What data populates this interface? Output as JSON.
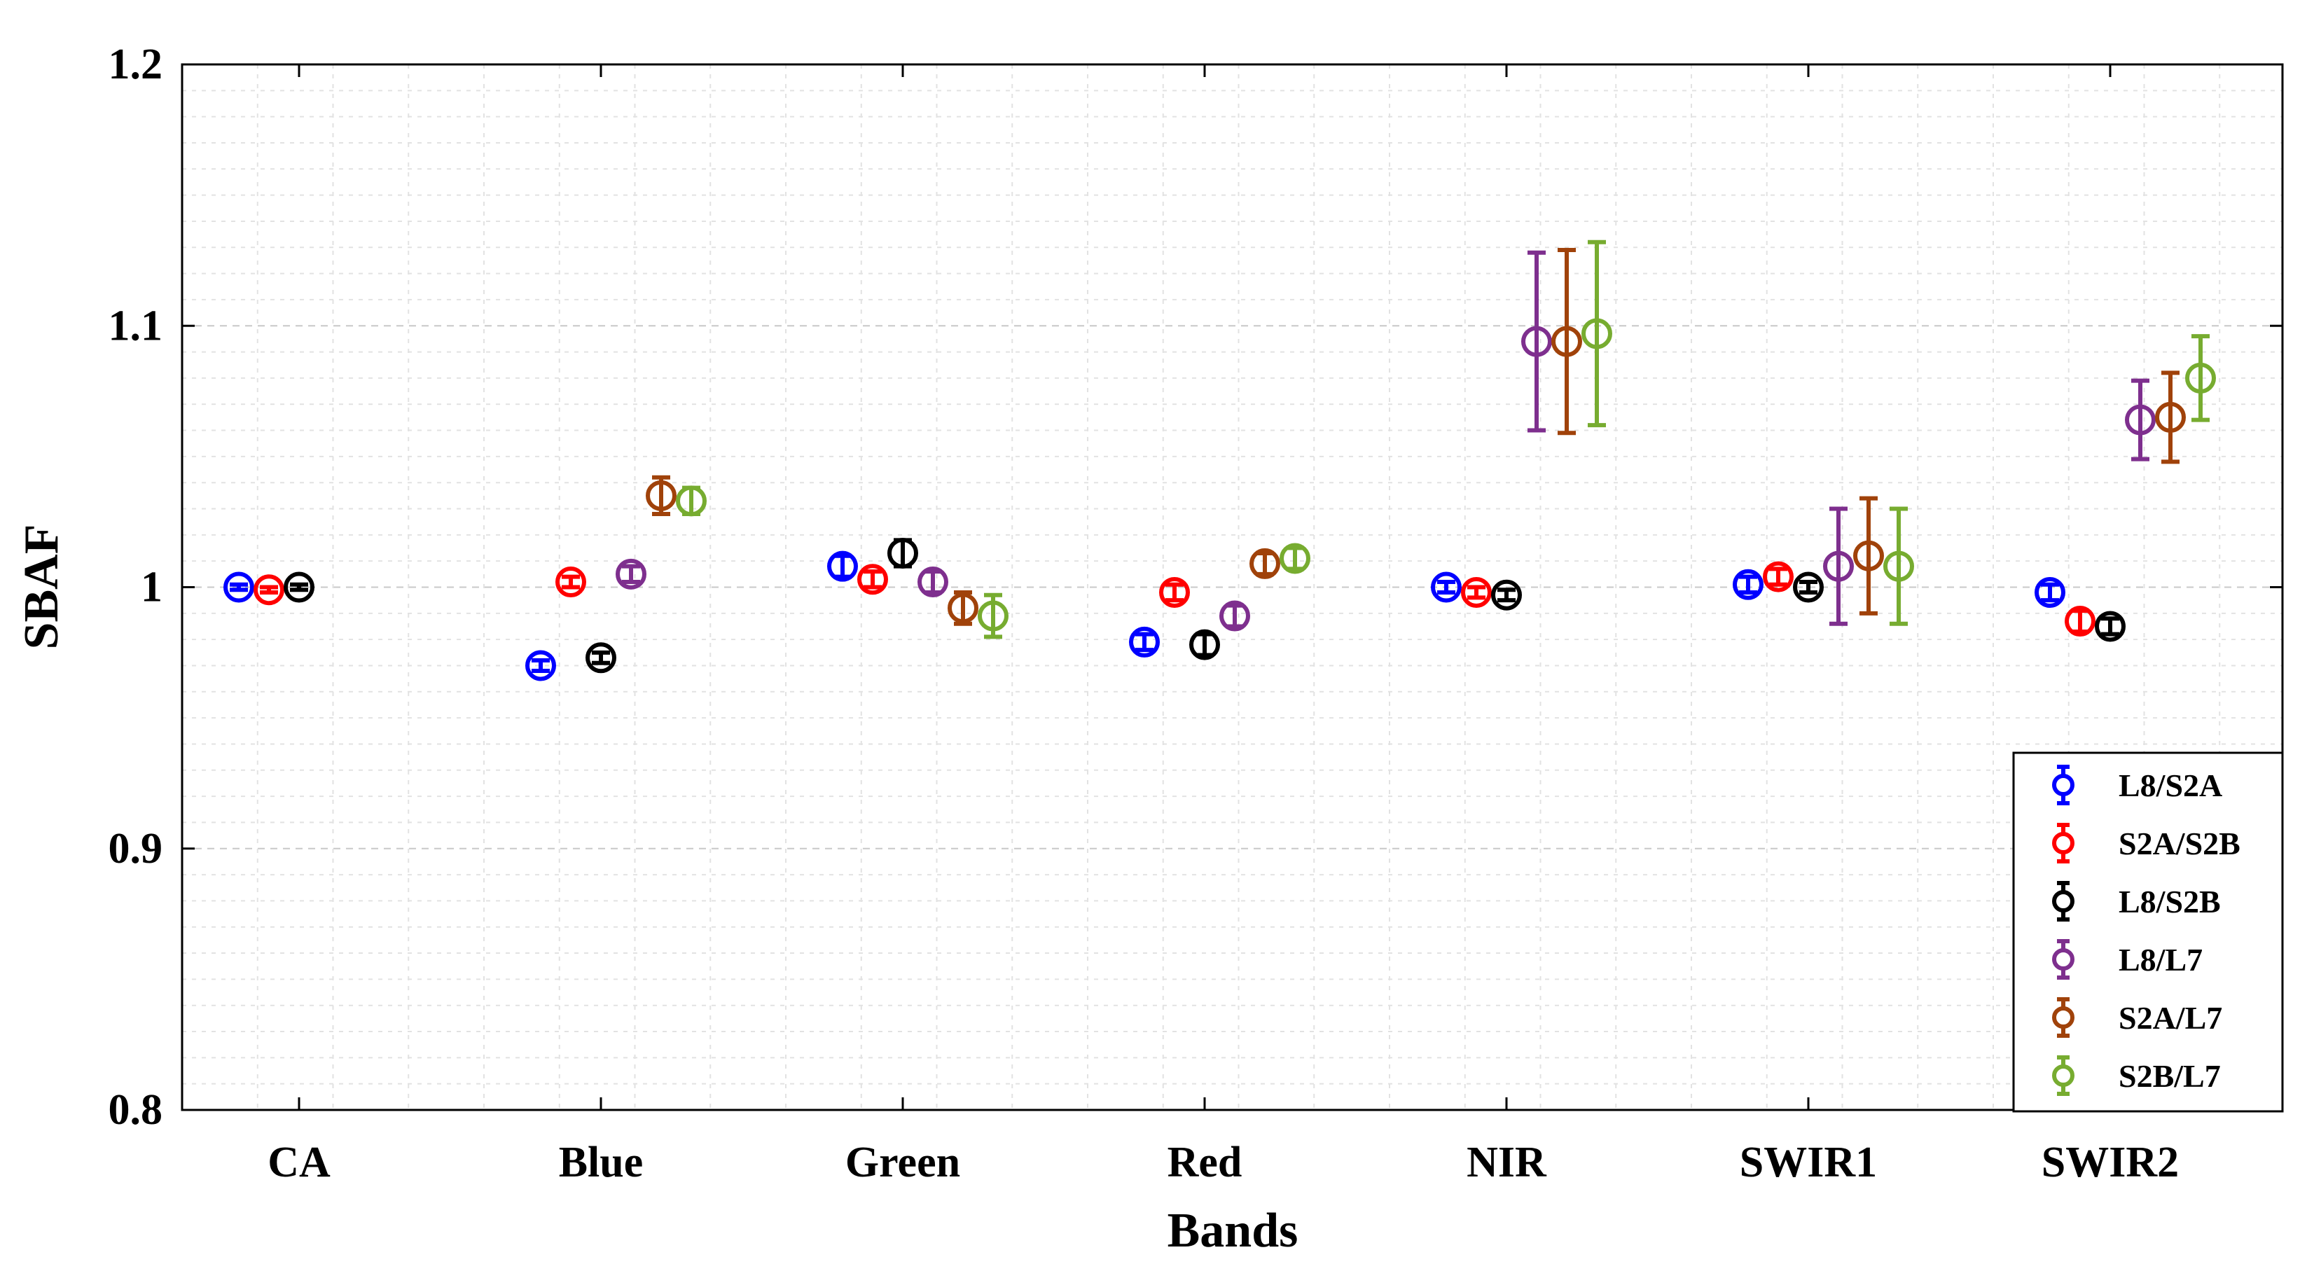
{
  "chart_data": {
    "type": "scatter",
    "subtype": "errorbar",
    "title": "",
    "xlabel": "Bands",
    "ylabel": "SBAF",
    "categories": [
      "CA",
      "Blue",
      "Green",
      "Red",
      "NIR",
      "SWIR1",
      "SWIR2"
    ],
    "ylim": [
      0.8,
      1.2
    ],
    "yticks": [
      "0.8",
      "0.9",
      "1",
      "1.1",
      "1.2"
    ],
    "grid": true,
    "minor_grid": true,
    "legend_position": "bottom-right",
    "series": [
      {
        "name": "L8/S2A",
        "color": "#0000ff",
        "values": [
          1.0,
          0.97,
          1.008,
          0.979,
          1.0,
          1.001,
          0.998
        ],
        "errors": [
          0.001,
          0.002,
          0.004,
          0.003,
          0.002,
          0.003,
          0.003
        ]
      },
      {
        "name": "S2A/S2B",
        "color": "#ff0000",
        "values": [
          0.999,
          1.002,
          1.003,
          0.998,
          0.998,
          1.004,
          0.987
        ],
        "errors": [
          0.001,
          0.002,
          0.003,
          0.003,
          0.002,
          0.003,
          0.004
        ]
      },
      {
        "name": "L8/S2B",
        "color": "#000000",
        "values": [
          1.0,
          0.973,
          1.013,
          0.978,
          0.997,
          1.0,
          0.985
        ],
        "errors": [
          0.001,
          0.002,
          0.005,
          0.004,
          0.002,
          0.002,
          0.003
        ]
      },
      {
        "name": "L8/L7",
        "color": "#7e2f8e",
        "values": [
          null,
          1.005,
          1.002,
          0.989,
          1.094,
          1.008,
          1.064
        ],
        "errors": [
          null,
          0.003,
          0.004,
          0.004,
          0.034,
          0.022,
          0.015
        ]
      },
      {
        "name": "S2A/L7",
        "color": "#a0420a",
        "values": [
          null,
          1.035,
          0.992,
          1.009,
          1.094,
          1.012,
          1.065
        ],
        "errors": [
          null,
          0.007,
          0.006,
          0.004,
          0.035,
          0.022,
          0.017
        ]
      },
      {
        "name": "S2B/L7",
        "color": "#77ac30",
        "values": [
          null,
          1.033,
          0.989,
          1.011,
          1.097,
          1.008,
          1.08
        ],
        "errors": [
          null,
          0.005,
          0.008,
          0.004,
          0.035,
          0.022,
          0.016
        ]
      }
    ]
  }
}
